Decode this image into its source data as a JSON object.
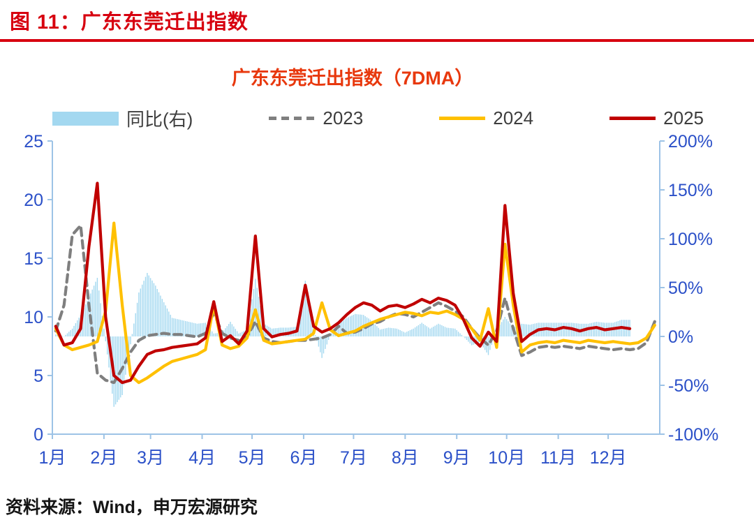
{
  "header": {
    "title": "图 11：广东东莞迁出指数",
    "accent_color": "#d7000f"
  },
  "source": {
    "text": "资料来源：Wind，申万宏源研究"
  },
  "chart_data": {
    "type": "bar+line",
    "title": "广东东莞迁出指数（7DMA）",
    "title_color": "#e8380d",
    "axis_label_color": "#2B50C8",
    "axis_line_color": "#9DC3E6",
    "legend_position": "top",
    "grid": false,
    "x_axis": {
      "total_days": 365,
      "tick_days": [
        0,
        31,
        59,
        90,
        120,
        151,
        181,
        212,
        243,
        273,
        304,
        334
      ],
      "tick_labels": [
        "1月",
        "2月",
        "3月",
        "4月",
        "5月",
        "6月",
        "7月",
        "8月",
        "9月",
        "10月",
        "11月",
        "12月"
      ]
    },
    "left_axis": {
      "min": 0,
      "max": 25,
      "ticks": [
        {
          "v": 0,
          "label": "0"
        },
        {
          "v": 5,
          "label": "5"
        },
        {
          "v": 10,
          "label": "10"
        },
        {
          "v": 15,
          "label": "15"
        },
        {
          "v": 20,
          "label": "20"
        },
        {
          "v": 25,
          "label": "25"
        }
      ]
    },
    "right_axis": {
      "min": -100,
      "max": 200,
      "ticks": [
        {
          "v": -100,
          "label": "-100%"
        },
        {
          "v": -50,
          "label": "-50%"
        },
        {
          "v": 0,
          "label": "0%"
        },
        {
          "v": 50,
          "label": "50%"
        },
        {
          "v": 100,
          "label": "100%"
        },
        {
          "v": 150,
          "label": "150%"
        },
        {
          "v": 200,
          "label": "200%"
        }
      ]
    },
    "sampling": {
      "start_day": 2,
      "step_days": 5
    },
    "series": [
      {
        "name": "同比(右)",
        "type": "bar",
        "axis": "right",
        "color": "#A3D8F0",
        "unit": "%",
        "values": [
          2,
          0,
          8,
          22,
          40,
          60,
          -5,
          -72,
          -60,
          -8,
          45,
          65,
          52,
          35,
          19,
          17,
          15,
          13,
          14,
          3,
          4,
          15,
          3,
          7,
          59,
          13,
          8,
          9,
          9,
          10,
          57,
          7,
          -22,
          1,
          13,
          19,
          23,
          22,
          16,
          7,
          9,
          8,
          4,
          8,
          14,
          8,
          13,
          9,
          8,
          0,
          -9,
          -6,
          -19,
          7,
          20,
          9,
          13,
          12,
          14,
          14,
          14,
          14,
          14,
          13,
          13,
          15,
          14,
          14,
          17,
          17,
          null,
          null,
          null
        ]
      },
      {
        "name": "2023",
        "type": "line",
        "dash": true,
        "axis": "left",
        "color": "#7F7F7F",
        "values": [
          8.8,
          11.0,
          17.0,
          17.8,
          11.0,
          5.2,
          4.6,
          4.4,
          5.6,
          7.0,
          8.0,
          8.4,
          8.5,
          8.6,
          8.5,
          8.5,
          8.4,
          8.3,
          8.6,
          10.4,
          8.6,
          8.2,
          8.0,
          8.3,
          9.6,
          8.2,
          7.9,
          7.8,
          7.9,
          8.0,
          8.0,
          8.1,
          8.2,
          8.5,
          9.2,
          8.6,
          8.7,
          9.0,
          9.4,
          9.6,
          10.0,
          10.3,
          10.2,
          10.0,
          10.4,
          10.8,
          11.2,
          10.9,
          10.5,
          10.0,
          9.0,
          8.2,
          7.6,
          8.8,
          11.6,
          9.0,
          6.7,
          7.0,
          7.4,
          7.5,
          7.4,
          7.5,
          7.4,
          7.3,
          7.5,
          7.4,
          7.3,
          7.2,
          7.3,
          7.2,
          7.3,
          7.8,
          9.6
        ]
      },
      {
        "name": "2024",
        "type": "line",
        "dash": false,
        "axis": "left",
        "color": "#FFC000",
        "values": [
          9.0,
          7.6,
          7.2,
          7.4,
          7.6,
          7.9,
          10.5,
          18.0,
          11.0,
          5.0,
          4.4,
          4.8,
          5.3,
          5.8,
          6.2,
          6.4,
          6.6,
          6.8,
          7.2,
          11.0,
          7.6,
          7.3,
          7.5,
          8.2,
          10.6,
          8.0,
          7.7,
          7.8,
          7.9,
          8.0,
          8.1,
          8.6,
          11.2,
          8.9,
          8.4,
          8.6,
          8.8,
          9.2,
          9.5,
          9.8,
          10.0,
          10.2,
          10.4,
          10.3,
          10.1,
          10.4,
          10.3,
          10.5,
          10.2,
          9.8,
          9.0,
          8.0,
          10.7,
          7.4,
          16.2,
          11.0,
          7.0,
          7.6,
          7.8,
          7.9,
          7.8,
          8.0,
          7.9,
          7.8,
          8.0,
          7.9,
          7.8,
          7.9,
          7.8,
          7.7,
          7.8,
          8.2,
          9.3
        ]
      },
      {
        "name": "2025",
        "type": "line",
        "dash": false,
        "axis": "left",
        "color": "#C00000",
        "values": [
          9.2,
          7.6,
          7.8,
          9.0,
          16.0,
          21.4,
          10.0,
          5.0,
          4.4,
          4.6,
          5.8,
          6.8,
          7.1,
          7.2,
          7.4,
          7.5,
          7.6,
          7.7,
          8.2,
          11.3,
          7.9,
          8.4,
          7.7,
          8.8,
          16.9,
          9.0,
          8.3,
          8.5,
          8.6,
          8.8,
          12.7,
          9.2,
          8.7,
          9.0,
          9.5,
          10.2,
          10.8,
          11.2,
          11.0,
          10.5,
          10.9,
          11.0,
          10.8,
          11.1,
          11.5,
          11.2,
          11.6,
          11.4,
          11.0,
          9.8,
          8.2,
          7.5,
          8.7,
          7.9,
          19.5,
          12.0,
          7.9,
          8.5,
          8.9,
          9.0,
          8.9,
          9.1,
          9.0,
          8.8,
          9.0,
          9.1,
          8.9,
          9.0,
          9.1,
          9.0,
          null,
          null,
          null
        ]
      }
    ],
    "legend": [
      {
        "label": "同比(右)",
        "swatch": "bar",
        "swatch_color": "#A3D8F0"
      },
      {
        "label": "2023",
        "swatch": "dashed-line",
        "swatch_color": "#7F7F7F"
      },
      {
        "label": "2024",
        "swatch": "line",
        "swatch_color": "#FFC000"
      },
      {
        "label": "2025",
        "swatch": "line",
        "swatch_color": "#C00000"
      }
    ]
  }
}
